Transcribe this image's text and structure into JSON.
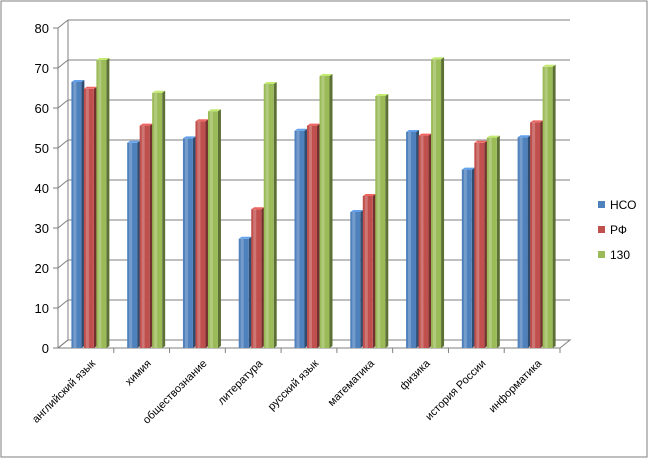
{
  "chart_data": {
    "type": "bar",
    "categories": [
      "английский язык",
      "химия",
      "обществознание",
      "литература",
      "русский язык",
      "математика",
      "физика",
      "история России",
      "информатика"
    ],
    "series": [
      {
        "name": "НСО",
        "color": "#4f81bd",
        "values": [
          66.5,
          51.3,
          52.4,
          27.3,
          54.3,
          34.0,
          54.0,
          44.6,
          52.7
        ]
      },
      {
        "name": "РФ",
        "color": "#c0504d",
        "values": [
          64.8,
          55.6,
          56.7,
          34.7,
          55.6,
          38.0,
          53.1,
          51.3,
          56.4
        ]
      },
      {
        "name": "130",
        "color": "#9bbb59",
        "values": [
          72.0,
          63.8,
          59.2,
          66.0,
          68.0,
          63.0,
          72.2,
          52.6,
          70.3
        ]
      }
    ],
    "ylim": [
      0,
      80
    ],
    "yticks": [
      "0",
      "10",
      "20",
      "30",
      "40",
      "50",
      "60",
      "70",
      "80"
    ],
    "grid": true,
    "legend_position": "right",
    "title": "",
    "xlabel": "",
    "ylabel": ""
  }
}
